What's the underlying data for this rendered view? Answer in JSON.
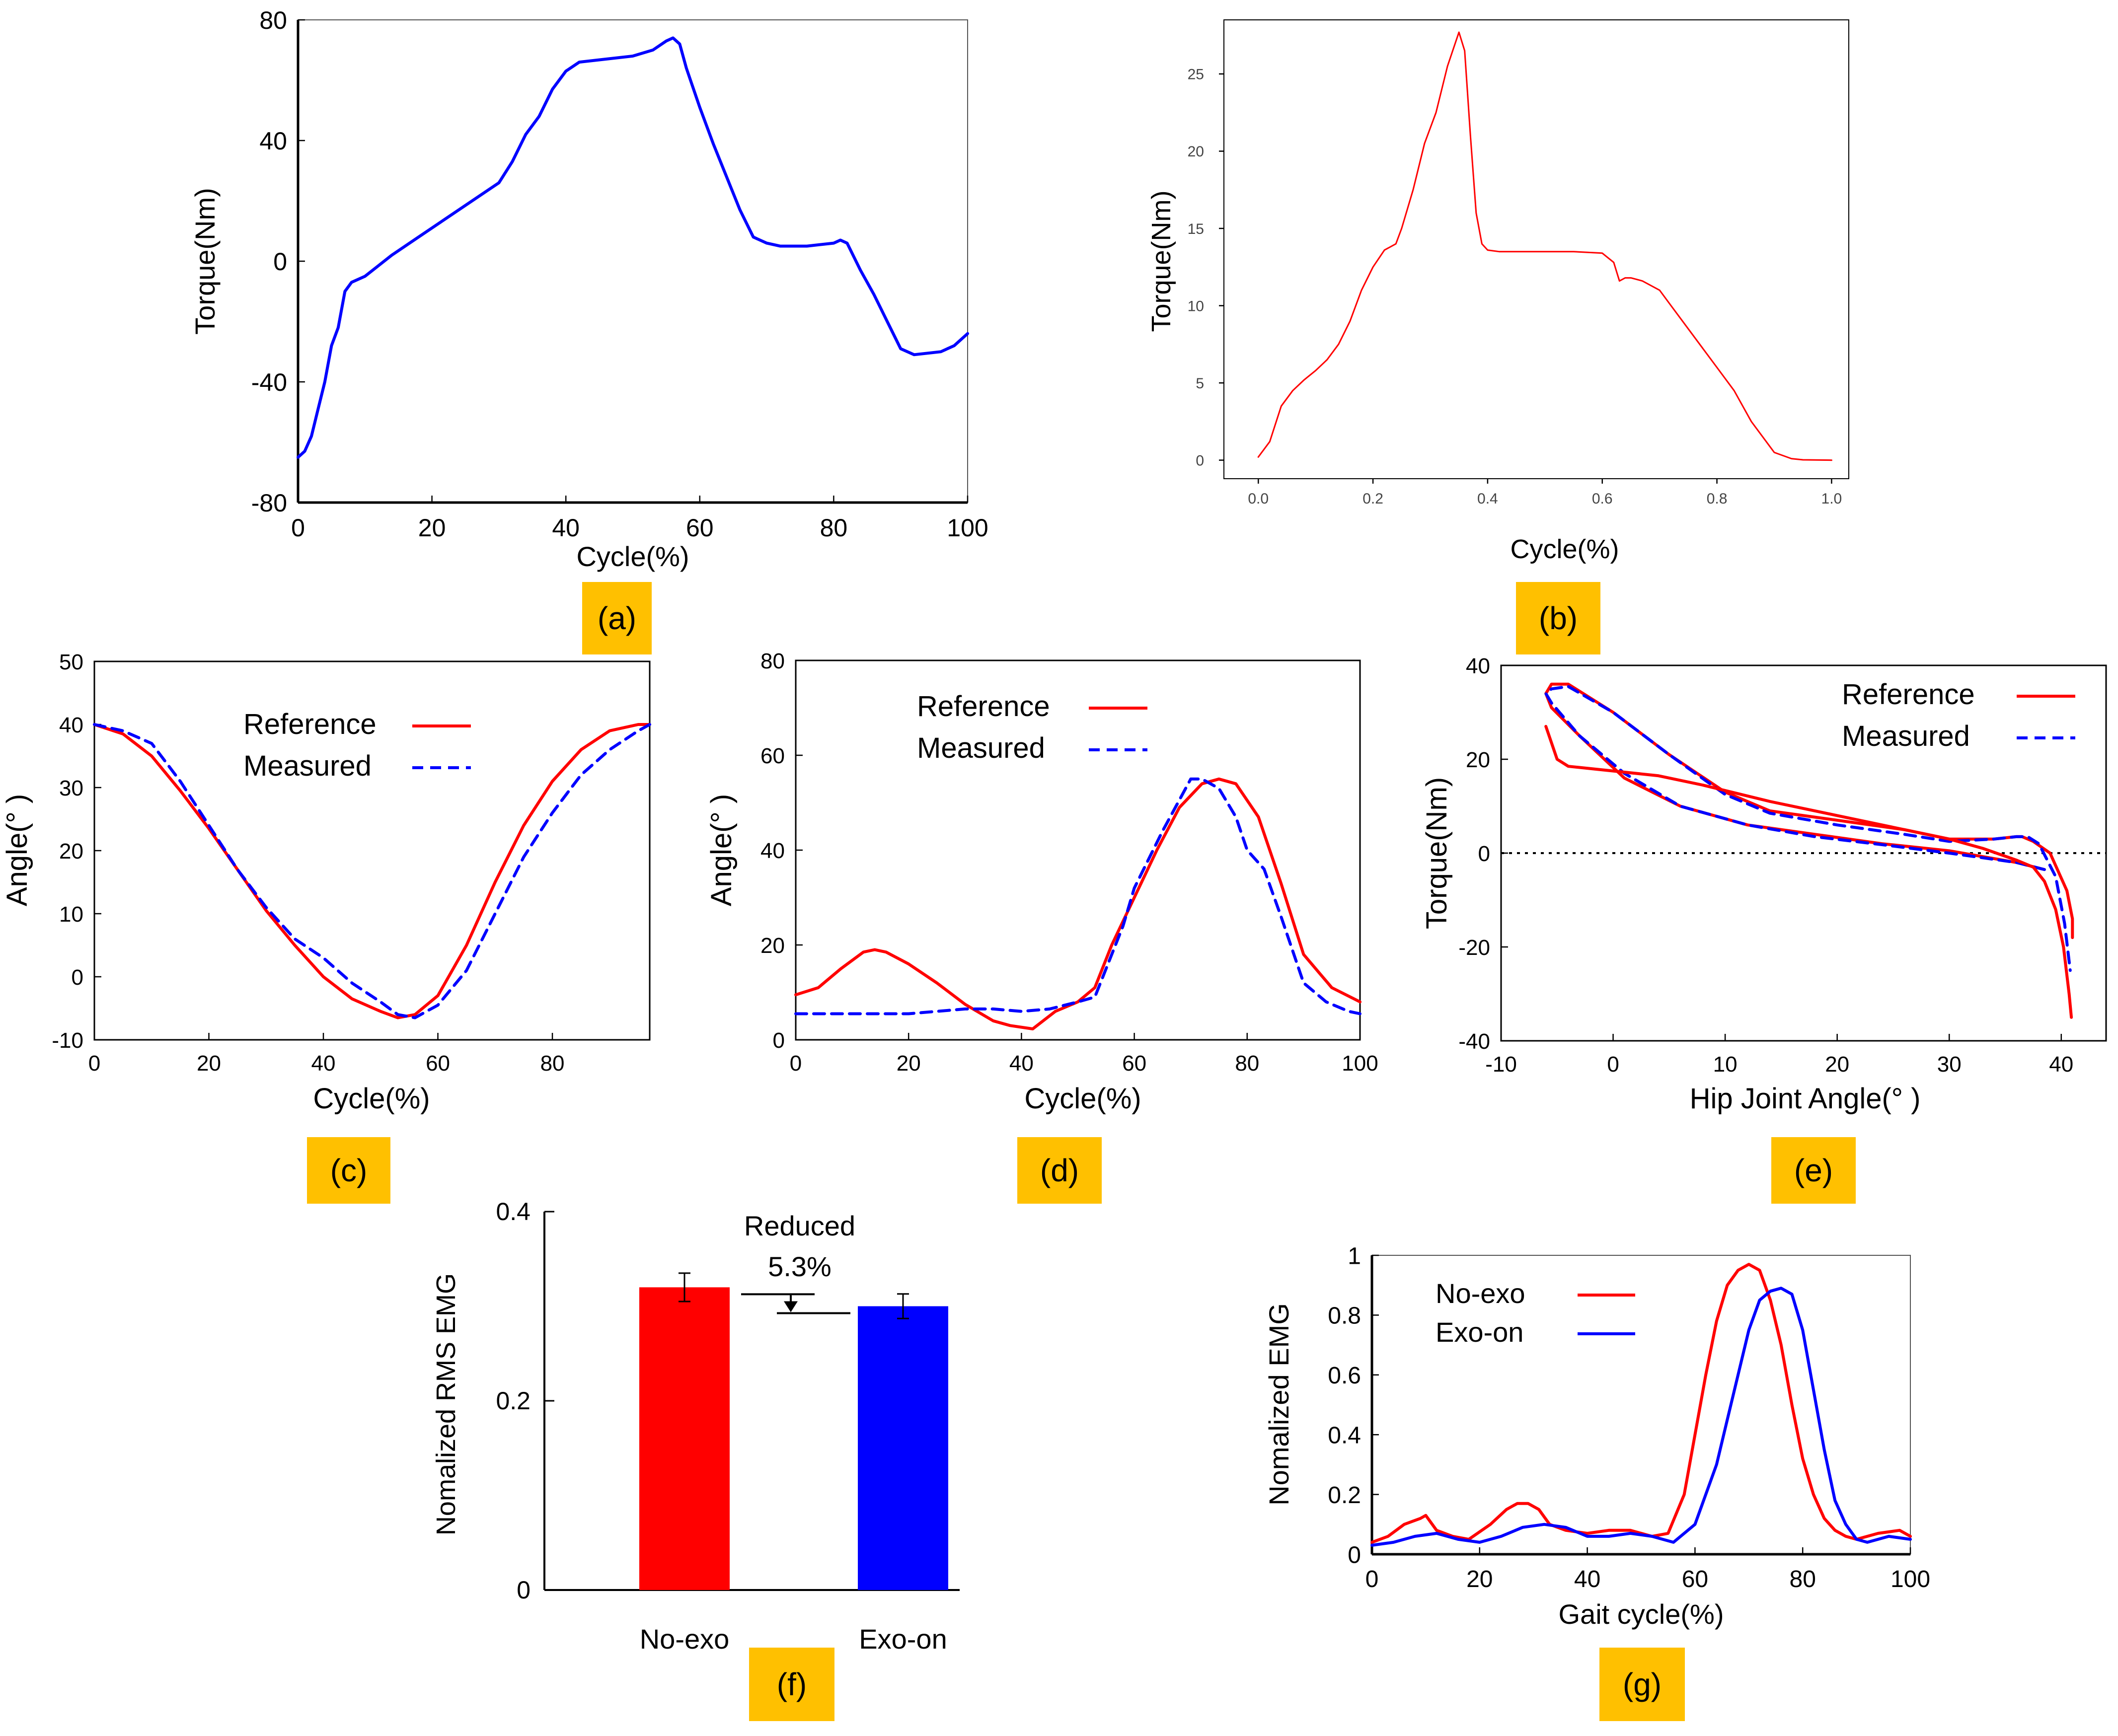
{
  "colors": {
    "red": "#ff0000",
    "blue": "#0000ff",
    "badge": "#ffc000",
    "axis": "#000000",
    "matplot_tick": "#444444"
  },
  "panels": [
    {
      "id": "a",
      "badge": "(a)",
      "xlabel": "Cycle(%)",
      "ylabel": "Torque(Nm)",
      "xlim": [
        0,
        100
      ],
      "ylim": [
        -80,
        80
      ],
      "xticks": [
        0,
        20,
        40,
        60,
        80,
        100
      ],
      "yticks": [
        -80,
        -40,
        0,
        40,
        80
      ],
      "series": [
        {
          "color": "blue",
          "dash": false,
          "x": [
            0,
            1,
            2,
            3,
            4,
            5,
            6,
            7,
            8,
            10,
            14,
            18,
            22,
            26,
            30,
            32,
            34,
            36,
            38,
            40,
            42,
            46,
            50,
            53,
            55,
            56,
            57,
            58,
            60,
            62,
            64,
            66,
            68,
            70,
            72,
            76,
            80,
            81,
            82,
            84,
            86,
            88,
            90,
            92,
            96,
            98,
            100
          ],
          "y": [
            -65,
            -63,
            -58,
            -49,
            -40,
            -28,
            -22,
            -10,
            -7,
            -5,
            2,
            8,
            14,
            20,
            26,
            33,
            42,
            48,
            57,
            63,
            66,
            67,
            68,
            70,
            73,
            74,
            72,
            64,
            51,
            39,
            28,
            17,
            8,
            6,
            5,
            5,
            6,
            7,
            6,
            -3,
            -11,
            -20,
            -29,
            -31,
            -30,
            -28,
            -24
          ]
        }
      ]
    },
    {
      "id": "b",
      "badge": "(b)",
      "xlabel": "Cycle(%)",
      "ylabel": "Torque(Nm)",
      "xlim": [
        -0.06,
        1.03
      ],
      "ylim": [
        -1.2,
        28.5
      ],
      "xticks": [
        "0.0",
        "0.2",
        "0.4",
        "0.6",
        "0.8",
        "1.0"
      ],
      "yticks": [
        "0",
        "5",
        "10",
        "15",
        "20",
        "25"
      ],
      "series": [
        {
          "color": "red",
          "dash": false,
          "x": [
            0,
            0.02,
            0.04,
            0.06,
            0.08,
            0.1,
            0.12,
            0.14,
            0.16,
            0.18,
            0.2,
            0.22,
            0.24,
            0.25,
            0.27,
            0.29,
            0.31,
            0.33,
            0.35,
            0.36,
            0.37,
            0.38,
            0.39,
            0.4,
            0.42,
            0.45,
            0.5,
            0.55,
            0.6,
            0.62,
            0.63,
            0.64,
            0.65,
            0.67,
            0.7,
            0.72,
            0.75,
            0.8,
            0.83,
            0.86,
            0.9,
            0.93,
            0.95,
            1.0
          ],
          "y": [
            0.2,
            1.2,
            3.5,
            4.5,
            5.2,
            5.8,
            6.5,
            7.5,
            9,
            11,
            12.5,
            13.6,
            14,
            15,
            17.5,
            20.5,
            22.5,
            25.5,
            27.7,
            26.5,
            21,
            16,
            14,
            13.6,
            13.5,
            13.5,
            13.5,
            13.5,
            13.4,
            12.8,
            11.6,
            11.8,
            11.8,
            11.6,
            11,
            10,
            8.5,
            6,
            4.5,
            2.5,
            0.5,
            0.1,
            0.02,
            0
          ]
        }
      ]
    },
    {
      "id": "c",
      "badge": "(c)",
      "xlabel": "Cycle(%)",
      "ylabel": "Angle(°  )",
      "xlim": [
        0,
        97
      ],
      "ylim": [
        -10,
        50
      ],
      "xticks": [
        0,
        20,
        40,
        60,
        80,
        ""
      ],
      "yticks": [
        -10,
        0,
        10,
        20,
        30,
        40,
        50
      ],
      "legend": [
        {
          "name": "Reference",
          "color": "red",
          "dash": false
        },
        {
          "name": "Measured",
          "color": "blue",
          "dash": true
        }
      ],
      "series": [
        {
          "color": "red",
          "dash": false,
          "x": [
            0,
            5,
            10,
            15,
            20,
            25,
            30,
            35,
            40,
            45,
            50,
            53,
            56,
            60,
            65,
            70,
            75,
            80,
            85,
            90,
            95,
            97
          ],
          "y": [
            40,
            38.5,
            35,
            29.5,
            23.5,
            17,
            10.5,
            5,
            0,
            -3.5,
            -5.5,
            -6.5,
            -6,
            -3,
            5,
            15,
            24,
            31,
            36,
            39,
            40,
            40
          ]
        },
        {
          "color": "blue",
          "dash": true,
          "x": [
            0,
            5,
            10,
            15,
            20,
            25,
            30,
            35,
            40,
            45,
            50,
            53,
            56,
            60,
            65,
            70,
            75,
            80,
            85,
            90,
            95,
            97
          ],
          "y": [
            40,
            39,
            37,
            31,
            24,
            17,
            11,
            6,
            3,
            -1,
            -4,
            -6,
            -6.5,
            -4.5,
            1,
            10,
            19,
            26,
            32,
            36,
            39,
            40
          ]
        }
      ]
    },
    {
      "id": "d",
      "badge": "(d)",
      "xlabel": "Cycle(%)",
      "ylabel": "Angle(°  )",
      "xlim": [
        0,
        100
      ],
      "ylim": [
        0,
        80
      ],
      "xticks": [
        0,
        20,
        40,
        60,
        80,
        100
      ],
      "yticks": [
        0,
        20,
        40,
        60,
        80
      ],
      "legend": [
        {
          "name": "Reference",
          "color": "red",
          "dash": false
        },
        {
          "name": "Measured",
          "color": "blue",
          "dash": true
        }
      ],
      "series": [
        {
          "color": "red",
          "dash": false,
          "x": [
            0,
            4,
            8,
            12,
            14,
            16,
            20,
            25,
            30,
            35,
            38,
            42,
            46,
            50,
            53,
            56,
            60,
            64,
            68,
            72,
            75,
            78,
            82,
            86,
            90,
            95,
            100
          ],
          "y": [
            9.5,
            11,
            15,
            18.5,
            19,
            18.5,
            16,
            12,
            7.5,
            4,
            3,
            2.3,
            6,
            8,
            11,
            20,
            30,
            40,
            49,
            54,
            55,
            54,
            47,
            33,
            18,
            11,
            8
          ]
        },
        {
          "color": "blue",
          "dash": true,
          "x": [
            0,
            10,
            20,
            25,
            30,
            35,
            40,
            45,
            50,
            53,
            55,
            58,
            60,
            65,
            70,
            72,
            75,
            78,
            80,
            83,
            86,
            90,
            94,
            98,
            100
          ],
          "y": [
            5.5,
            5.5,
            5.5,
            6,
            6.5,
            6.5,
            6,
            6.5,
            8,
            9,
            15,
            24,
            32,
            44,
            55,
            55,
            53,
            47,
            40,
            36,
            26,
            12,
            8,
            6,
            5.5
          ]
        }
      ]
    },
    {
      "id": "e",
      "badge": "(e)",
      "xlabel": "Hip Joint Angle(°  )",
      "ylabel": "Torque(Nm)",
      "xlim": [
        -10,
        44
      ],
      "ylim": [
        -40,
        40
      ],
      "xticks": [
        -10,
        0,
        10,
        20,
        30,
        40
      ],
      "yticks": [
        -40,
        -20,
        0,
        20,
        40
      ],
      "legend": [
        {
          "name": "Reference",
          "color": "red",
          "dash": false
        },
        {
          "name": "Measured",
          "color": "blue",
          "dash": true
        }
      ],
      "series": [
        {
          "color": "red",
          "dash": false,
          "x": [
            38.5,
            36,
            30,
            24,
            18,
            12,
            6,
            1,
            -3,
            -5.5,
            -6,
            -5.5,
            -4,
            0,
            5,
            10,
            14,
            20,
            26,
            30,
            34,
            36,
            36.5,
            37.5,
            39,
            40.5,
            41,
            41
          ],
          "y": [
            -3.5,
            -2,
            0.5,
            2,
            4,
            6,
            10,
            16,
            25,
            31,
            34,
            36,
            36,
            30,
            21,
            13,
            9,
            7,
            5,
            3,
            3,
            3.5,
            3.5,
            2.5,
            0,
            -8,
            -14,
            -18
          ]
        },
        {
          "color": "blue",
          "dash": true,
          "x": [
            38.5,
            36,
            30,
            24,
            18,
            12,
            6,
            1,
            -3,
            -5.5,
            -6,
            -5.5,
            -4,
            0,
            5,
            10,
            14,
            20,
            26,
            30,
            34,
            36,
            37,
            38,
            39.5,
            40.3,
            40.8
          ],
          "y": [
            -3.5,
            -2,
            0,
            1.8,
            3.5,
            6,
            10,
            17,
            25,
            32,
            34,
            35,
            35.5,
            30,
            21,
            12.5,
            8.5,
            6,
            4,
            2.5,
            3,
            3.5,
            3.5,
            2,
            -5,
            -15,
            -25
          ]
        },
        {
          "color": "red",
          "dash": false,
          "x": [
            -6,
            -5,
            -4,
            -2,
            0,
            4,
            8,
            14,
            20,
            26,
            30,
            33,
            36,
            37.5,
            38.5,
            39.5,
            40.2,
            40.7,
            40.9
          ],
          "y": [
            27,
            20,
            18.5,
            18,
            17.5,
            16.5,
            14.5,
            11,
            8,
            5,
            3,
            1,
            -1.5,
            -3,
            -6,
            -12,
            -20,
            -30,
            -35
          ]
        }
      ]
    },
    {
      "id": "f",
      "badge": "(f)",
      "ylabel": "Nomalized RMS EMG",
      "ylim": [
        0,
        0.4
      ],
      "yticks": [
        "0",
        "0.2",
        "0.4"
      ],
      "chart_type": "bar",
      "bars": [
        {
          "name": "No-exo",
          "value": 0.32,
          "error": 0.015,
          "color": "red"
        },
        {
          "name": "Exo-on",
          "value": 0.3,
          "error": 0.013,
          "color": "blue"
        }
      ],
      "annotation": {
        "line1": "Reduced",
        "line2": "5.3%"
      }
    },
    {
      "id": "g",
      "badge": "(g)",
      "xlabel": "Gait cycle(%)",
      "ylabel": "Nomalized  EMG",
      "xlim": [
        0,
        100
      ],
      "ylim": [
        0,
        1
      ],
      "xticks": [
        0,
        20,
        40,
        60,
        80,
        100
      ],
      "yticks": [
        "0",
        "0.2",
        "0.4",
        "0.6",
        "0.8",
        "1"
      ],
      "legend": [
        {
          "name": "No-exo",
          "color": "red",
          "dash": false
        },
        {
          "name": "Exo-on",
          "color": "blue",
          "dash": false
        }
      ],
      "series": [
        {
          "color": "red",
          "dash": false,
          "x": [
            0,
            3,
            6,
            9,
            10,
            12,
            15,
            18,
            22,
            25,
            27,
            29,
            31,
            33,
            36,
            40,
            44,
            48,
            52,
            55,
            58,
            60,
            62,
            64,
            66,
            68,
            70,
            72,
            74,
            76,
            78,
            80,
            82,
            84,
            86,
            88,
            90,
            94,
            98,
            100
          ],
          "y": [
            0.04,
            0.06,
            0.1,
            0.12,
            0.13,
            0.08,
            0.06,
            0.05,
            0.1,
            0.15,
            0.17,
            0.17,
            0.15,
            0.1,
            0.08,
            0.07,
            0.08,
            0.08,
            0.06,
            0.07,
            0.2,
            0.4,
            0.6,
            0.78,
            0.9,
            0.95,
            0.97,
            0.95,
            0.85,
            0.7,
            0.5,
            0.32,
            0.2,
            0.12,
            0.08,
            0.06,
            0.05,
            0.07,
            0.08,
            0.06
          ]
        },
        {
          "color": "blue",
          "dash": false,
          "x": [
            0,
            4,
            8,
            12,
            16,
            20,
            24,
            28,
            32,
            36,
            40,
            44,
            48,
            52,
            56,
            60,
            64,
            66,
            68,
            70,
            72,
            74,
            76,
            78,
            80,
            82,
            84,
            86,
            88,
            90,
            92,
            96,
            100
          ],
          "y": [
            0.03,
            0.04,
            0.06,
            0.07,
            0.05,
            0.04,
            0.06,
            0.09,
            0.1,
            0.09,
            0.06,
            0.06,
            0.07,
            0.06,
            0.04,
            0.1,
            0.3,
            0.45,
            0.6,
            0.75,
            0.85,
            0.88,
            0.89,
            0.87,
            0.75,
            0.55,
            0.35,
            0.18,
            0.1,
            0.05,
            0.04,
            0.06,
            0.05
          ]
        }
      ]
    }
  ],
  "chart_data": [
    {
      "type": "line",
      "title": "(a)",
      "xlabel": "Cycle(%)",
      "ylabel": "Torque(Nm)",
      "xlim": [
        0,
        100
      ],
      "ylim": [
        -80,
        80
      ]
    },
    {
      "type": "line",
      "title": "(b)",
      "xlabel": "Cycle(%)",
      "ylabel": "Torque(Nm)",
      "xlim": [
        0,
        1
      ],
      "ylim": [
        0,
        28
      ]
    },
    {
      "type": "line",
      "title": "(c)",
      "xlabel": "Cycle(%)",
      "ylabel": "Angle(°  )",
      "series_names": [
        "Reference",
        "Measured"
      ],
      "ylim": [
        -10,
        50
      ]
    },
    {
      "type": "line",
      "title": "(d)",
      "xlabel": "Cycle(%)",
      "ylabel": "Angle(°  )",
      "series_names": [
        "Reference",
        "Measured"
      ],
      "ylim": [
        0,
        80
      ]
    },
    {
      "type": "line",
      "title": "(e)",
      "xlabel": "Hip Joint Angle(°  )",
      "ylabel": "Torque(Nm)",
      "series_names": [
        "Reference",
        "Measured"
      ],
      "ylim": [
        -40,
        40
      ]
    },
    {
      "type": "bar",
      "title": "(f)",
      "ylabel": "Nomalized RMS EMG",
      "categories": [
        "No-exo",
        "Exo-on"
      ],
      "values": [
        0.32,
        0.3
      ],
      "annotation": "Reduced 5.3%"
    },
    {
      "type": "line",
      "title": "(g)",
      "xlabel": "Gait cycle(%)",
      "ylabel": "Nomalized  EMG",
      "series_names": [
        "No-exo",
        "Exo-on"
      ],
      "ylim": [
        0,
        1
      ]
    }
  ]
}
